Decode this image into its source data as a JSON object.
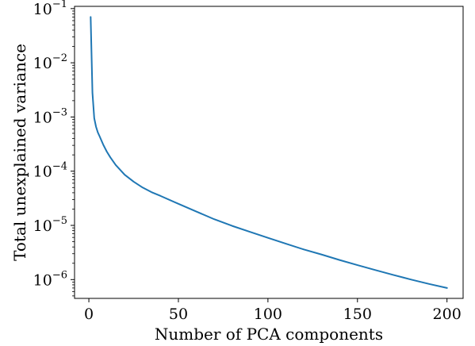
{
  "chart_data": {
    "type": "line",
    "title": "",
    "xlabel": "Number of PCA components",
    "ylabel": "Total unexplained variance",
    "xlim": [
      -8,
      209
    ],
    "ylim": [
      4.5e-07,
      0.11
    ],
    "yscale": "log",
    "grid": false,
    "legend": "none",
    "xticks": [
      0,
      50,
      100,
      150,
      200
    ],
    "xtick_labels": [
      "0",
      "50",
      "100",
      "150",
      "200"
    ],
    "yticks": [
      1e-06,
      1e-05,
      0.0001,
      0.001,
      0.01,
      0.1
    ],
    "ytick_labels": [
      {
        "base": "10",
        "exp": "−6"
      },
      {
        "base": "10",
        "exp": "−5"
      },
      {
        "base": "10",
        "exp": "−4"
      },
      {
        "base": "10",
        "exp": "−3"
      },
      {
        "base": "10",
        "exp": "−2"
      },
      {
        "base": "10",
        "exp": "−1"
      }
    ],
    "series": [
      {
        "color": "#1f77b4",
        "x": [
          1,
          2,
          3,
          4,
          5,
          6,
          8,
          10,
          12,
          15,
          20,
          25,
          30,
          35,
          40,
          50,
          60,
          70,
          80,
          90,
          100,
          110,
          120,
          130,
          140,
          150,
          160,
          170,
          180,
          190,
          200
        ],
        "y": [
          0.07,
          0.0028,
          0.00095,
          0.00066,
          0.00052,
          0.00044,
          0.00031,
          0.00023,
          0.00018,
          0.00013,
          8.6e-05,
          6.4e-05,
          5e-05,
          4.1e-05,
          3.5e-05,
          2.5e-05,
          1.8e-05,
          1.3e-05,
          9.8e-06,
          7.6e-06,
          5.9e-06,
          4.6e-06,
          3.6e-06,
          2.9e-06,
          2.3e-06,
          1.85e-06,
          1.5e-06,
          1.22e-06,
          1e-06,
          8.3e-07,
          7e-07
        ]
      }
    ]
  }
}
